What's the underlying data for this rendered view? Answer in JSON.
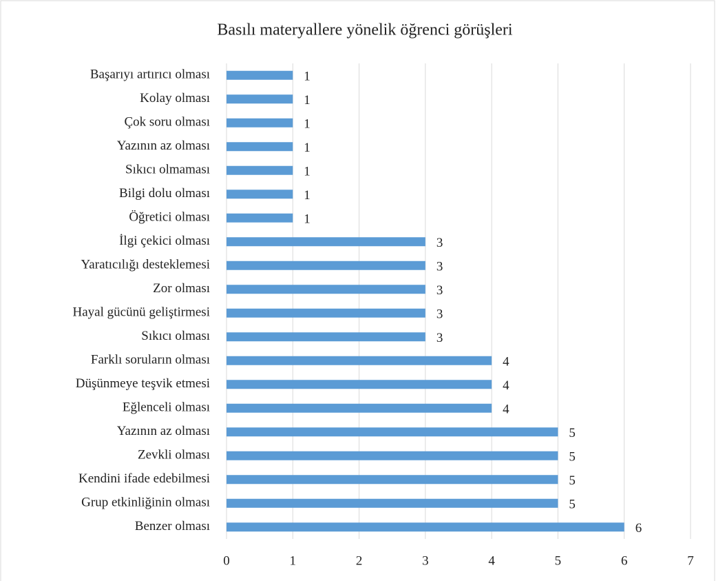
{
  "chart_data": {
    "type": "barh",
    "title": "Basılı materyallere yönelik öğrenci görüşleri",
    "categories": [
      "Başarıyı artırıcı olması",
      "Kolay olması",
      "Çok soru olması",
      "Yazının az olması",
      "Sıkıcı olmaması",
      "Bilgi dolu olması",
      "Öğretici olması",
      "İlgi çekici olması",
      "Yaratıcılığı desteklemesi",
      "Zor olması",
      "Hayal gücünü geliştirmesi",
      "Sıkıcı olması",
      "Farklı soruların olması",
      "Düşünmeye teşvik etmesi",
      "Eğlenceli olması",
      "Yazının az olması",
      "Zevkli olması",
      "Kendini ifade edebilmesi",
      "Grup etkinliğinin olması",
      "Benzer olması"
    ],
    "values": [
      1,
      1,
      1,
      1,
      1,
      1,
      1,
      3,
      3,
      3,
      3,
      3,
      4,
      4,
      4,
      5,
      5,
      5,
      5,
      6
    ],
    "color": "#5b9bd5",
    "xlim": [
      0,
      7
    ],
    "xticks": [
      0,
      1,
      2,
      3,
      4,
      5,
      6,
      7
    ],
    "grid": true
  }
}
